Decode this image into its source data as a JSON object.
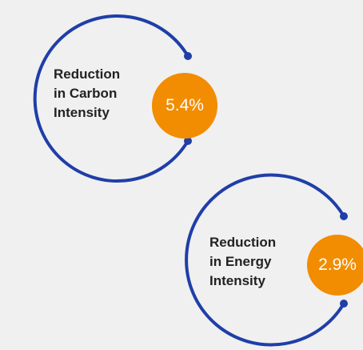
{
  "metrics": [
    {
      "label_lines": [
        "Reduction",
        "in Carbon",
        "Intensity"
      ],
      "value": "5.4%"
    },
    {
      "label_lines": [
        "Reduction",
        "in Energy",
        "Intensity"
      ],
      "value": "2.9%"
    }
  ],
  "colors": {
    "ring": "#1f3ea8",
    "badge": "#f28c00",
    "text": "#222222",
    "background": "#f0f0f0"
  }
}
